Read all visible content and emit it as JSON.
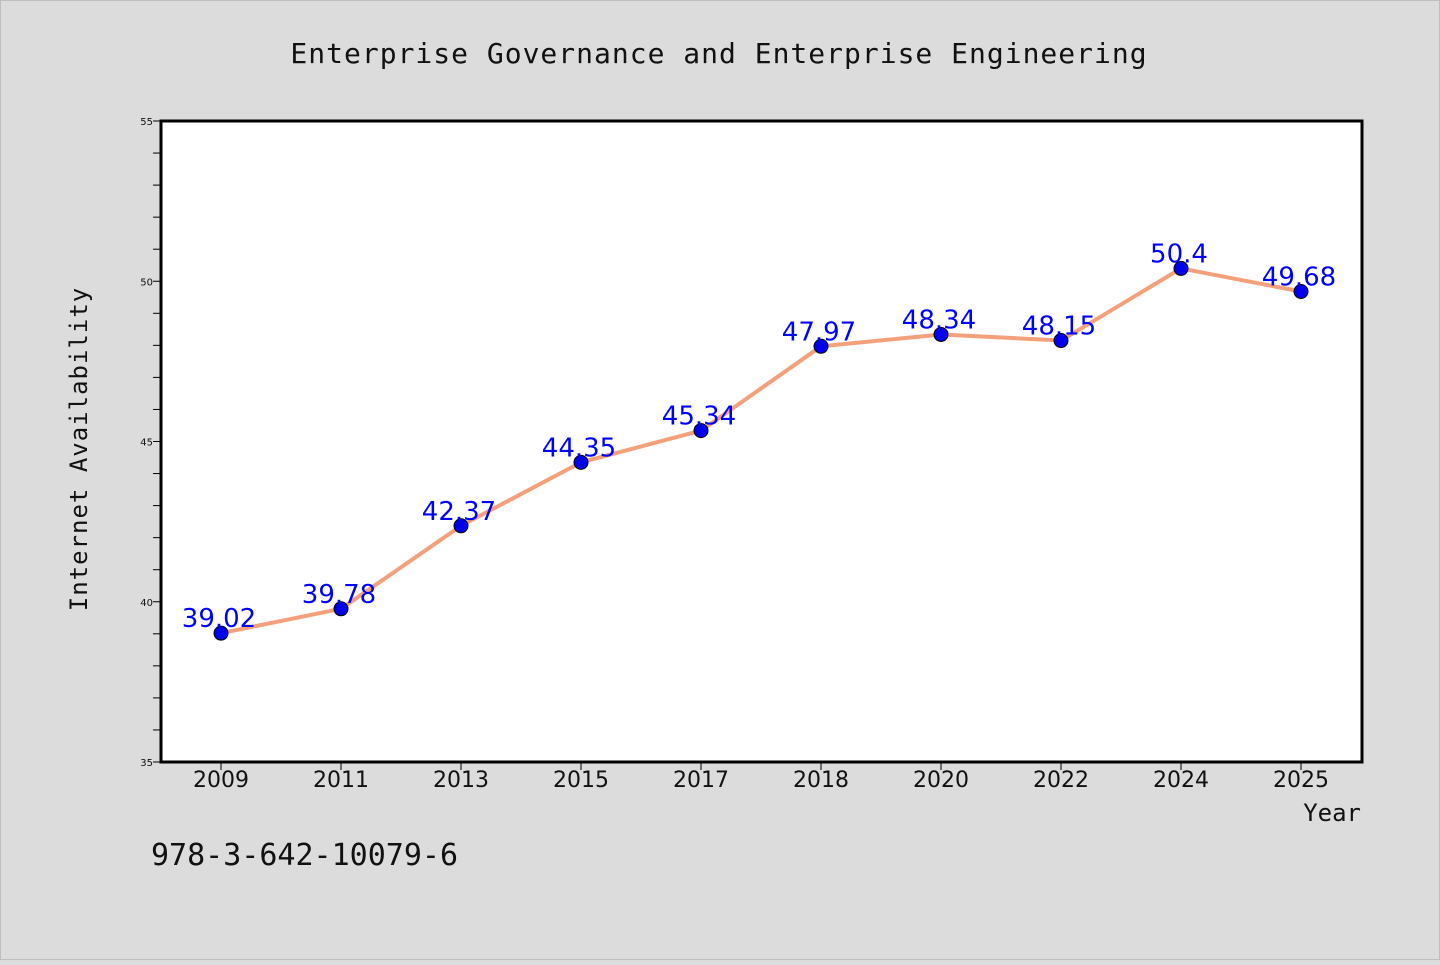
{
  "chart_data": {
    "type": "line",
    "title": "Enterprise Governance and Enterprise Engineering",
    "xlabel": "Year",
    "ylabel": "Internet Availability",
    "categories": [
      "2009",
      "2011",
      "2013",
      "2015",
      "2017",
      "2018",
      "2020",
      "2022",
      "2024",
      "2025"
    ],
    "series": [
      {
        "values": [
          39.02,
          39.78,
          42.37,
          44.35,
          45.34,
          47.97,
          48.34,
          48.15,
          50.4,
          49.68
        ]
      }
    ],
    "data_labels": [
      "39.02",
      "39.78",
      "42.37",
      "44.35",
      "45.34",
      "47.97",
      "48.34",
      "48.15",
      "50.4",
      "49.68"
    ],
    "ylim": [
      35,
      55
    ],
    "yticks": [
      35,
      40,
      45,
      50,
      55
    ],
    "grid": false,
    "legend": "none",
    "line_color": "#f4a07a",
    "marker_color": "#0000ee",
    "label_color": "#0000ff",
    "footnote": "978-3-642-10079-6"
  }
}
